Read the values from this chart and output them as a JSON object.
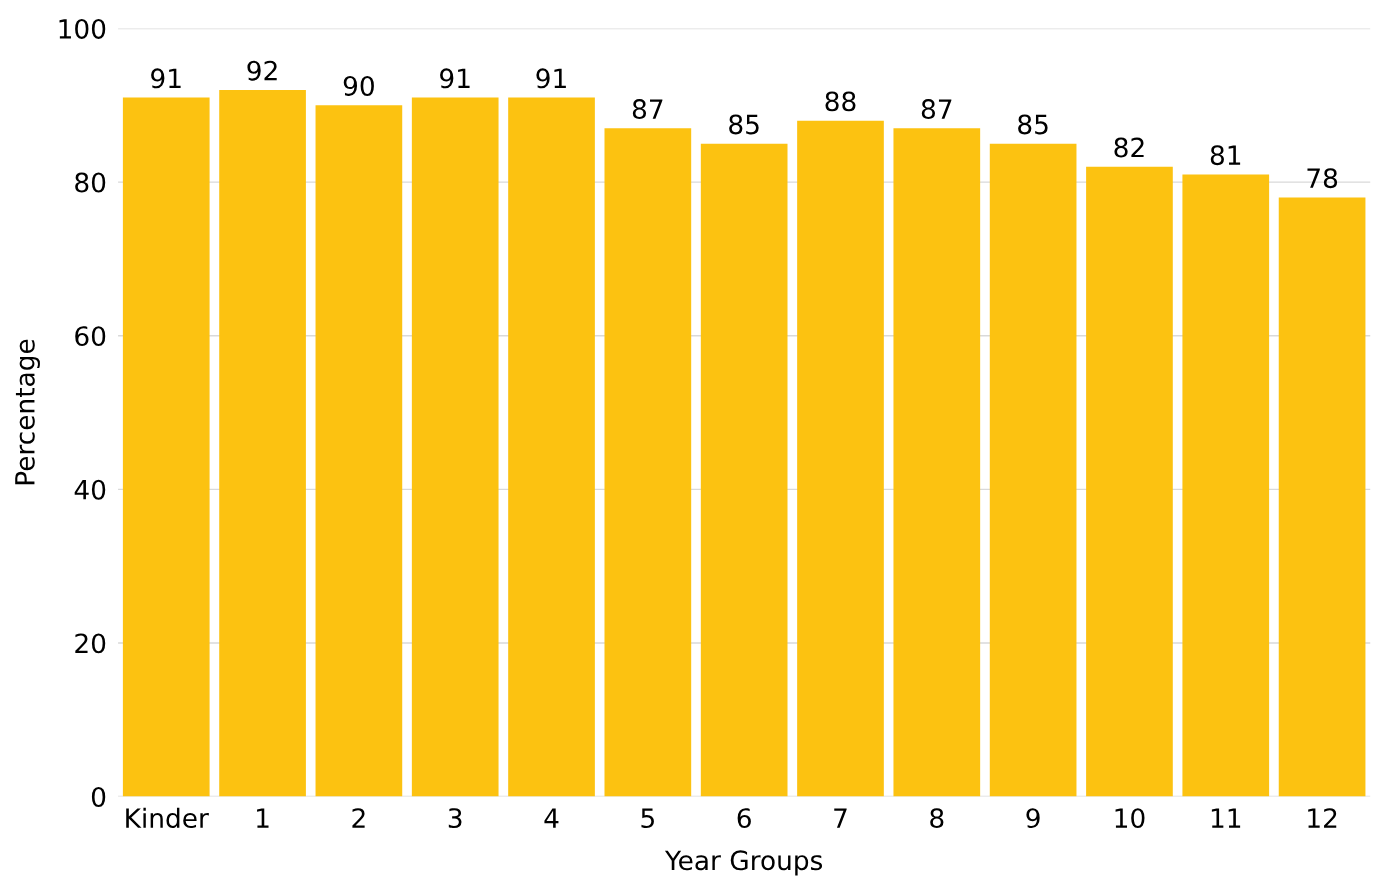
{
  "chart_data": {
    "type": "bar",
    "xlabel": "Year Groups",
    "ylabel": "Percentage",
    "categories": [
      "Kinder",
      "1",
      "2",
      "3",
      "4",
      "5",
      "6",
      "7",
      "8",
      "9",
      "10",
      "11",
      "12"
    ],
    "values": [
      91,
      92,
      90,
      91,
      91,
      87,
      85,
      88,
      87,
      85,
      82,
      81,
      78
    ],
    "color": "#fcc211",
    "ylim": [
      0,
      100
    ],
    "yticks": [
      0,
      20,
      40,
      60,
      80,
      100
    ],
    "grid": "y",
    "data_labels": true,
    "legend": false
  }
}
